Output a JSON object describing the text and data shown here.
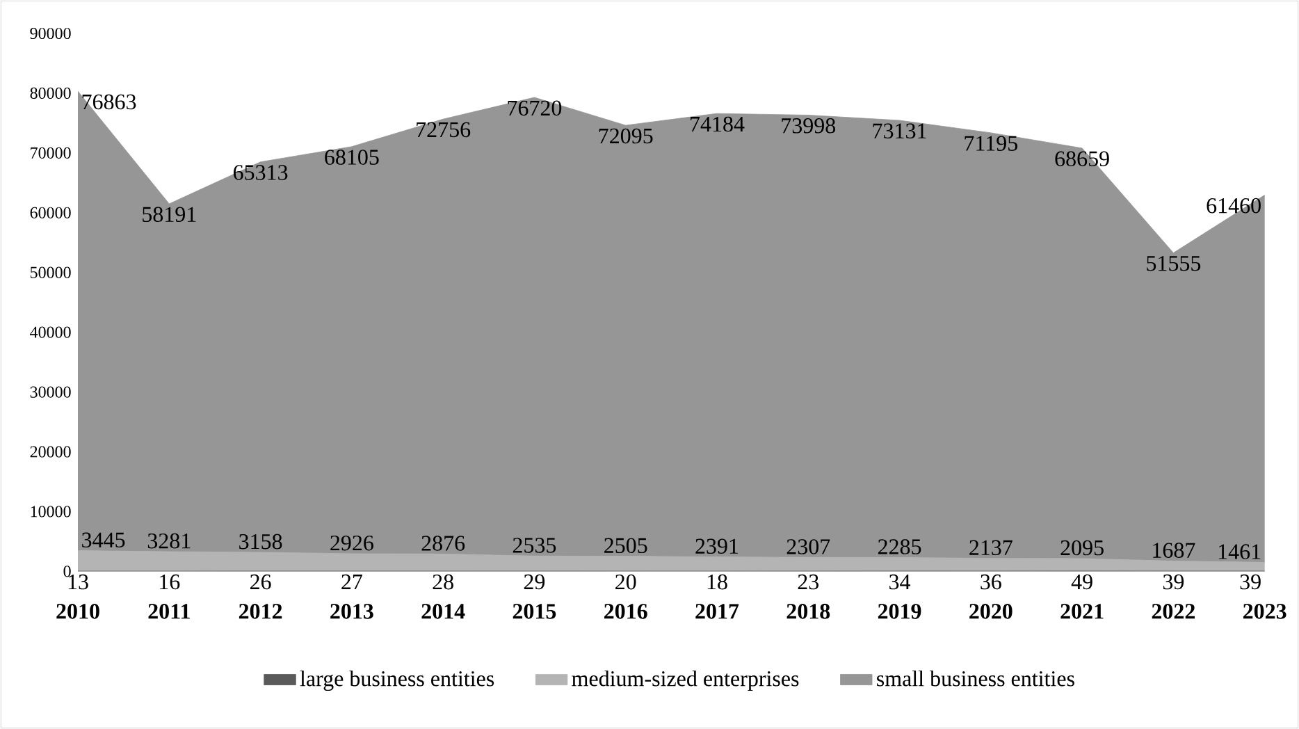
{
  "chart_data": {
    "type": "area",
    "stacked": true,
    "data_labels": true,
    "legend": "bottom",
    "grid": false,
    "categories": [
      "2010",
      "2011",
      "2012",
      "2013",
      "2014",
      "2015",
      "2016",
      "2017",
      "2018",
      "2019",
      "2020",
      "2021",
      "2022",
      "2023"
    ],
    "ylim": [
      0,
      90000
    ],
    "yticks": [
      0,
      10000,
      20000,
      30000,
      40000,
      50000,
      60000,
      70000,
      80000,
      90000
    ],
    "series": [
      {
        "name": "large business entities",
        "color": "#5a5a5a",
        "values": [
          13,
          16,
          26,
          27,
          28,
          29,
          20,
          18,
          23,
          34,
          36,
          49,
          39,
          39
        ]
      },
      {
        "name": "medium-sized enterprises",
        "color": "#b4b4b4",
        "values": [
          3445,
          3281,
          3158,
          2926,
          2876,
          2535,
          2505,
          2391,
          2307,
          2285,
          2137,
          2095,
          1687,
          1461
        ]
      },
      {
        "name": "small business entities",
        "color": "#969696",
        "values": [
          76863,
          58191,
          65313,
          68105,
          72756,
          76720,
          72095,
          74184,
          73998,
          73131,
          71195,
          68659,
          51555,
          61460
        ]
      }
    ]
  }
}
